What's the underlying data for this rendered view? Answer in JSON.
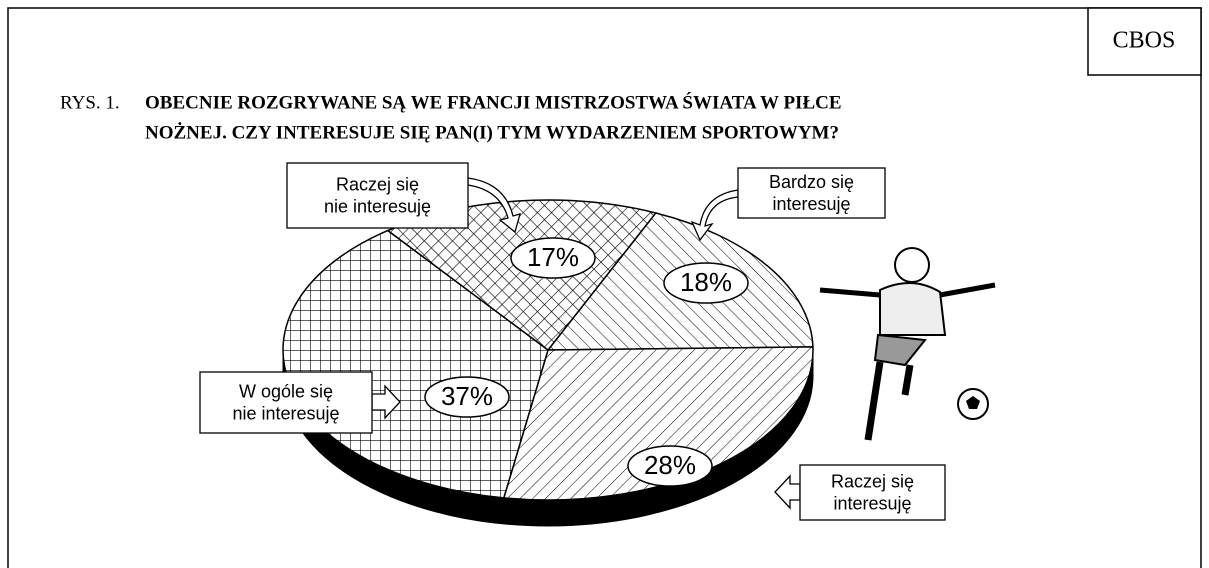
{
  "chart_data": {
    "type": "pie",
    "source": "CBOS",
    "figure_label": "RYS. 1.",
    "title": [
      "OBECNIE ROZGRYWANE SĄ WE FRANCJI MISTRZOSTWA ŚWIATA W PIŁCE",
      "NOŻNEJ. CZY INTERESUJE SIĘ PAN(I) TYM WYDARZENIEM SPORTOWYM?"
    ],
    "categories": [
      "Bardzo się\ninteresuję",
      "Raczej się\ninteresuję",
      "W ogóle się\nnie interesuję",
      "Raczej się\nnie interesuję"
    ],
    "values": [
      18,
      28,
      37,
      17
    ],
    "value_labels": [
      "18%",
      "28%",
      "37%",
      "17%"
    ]
  }
}
